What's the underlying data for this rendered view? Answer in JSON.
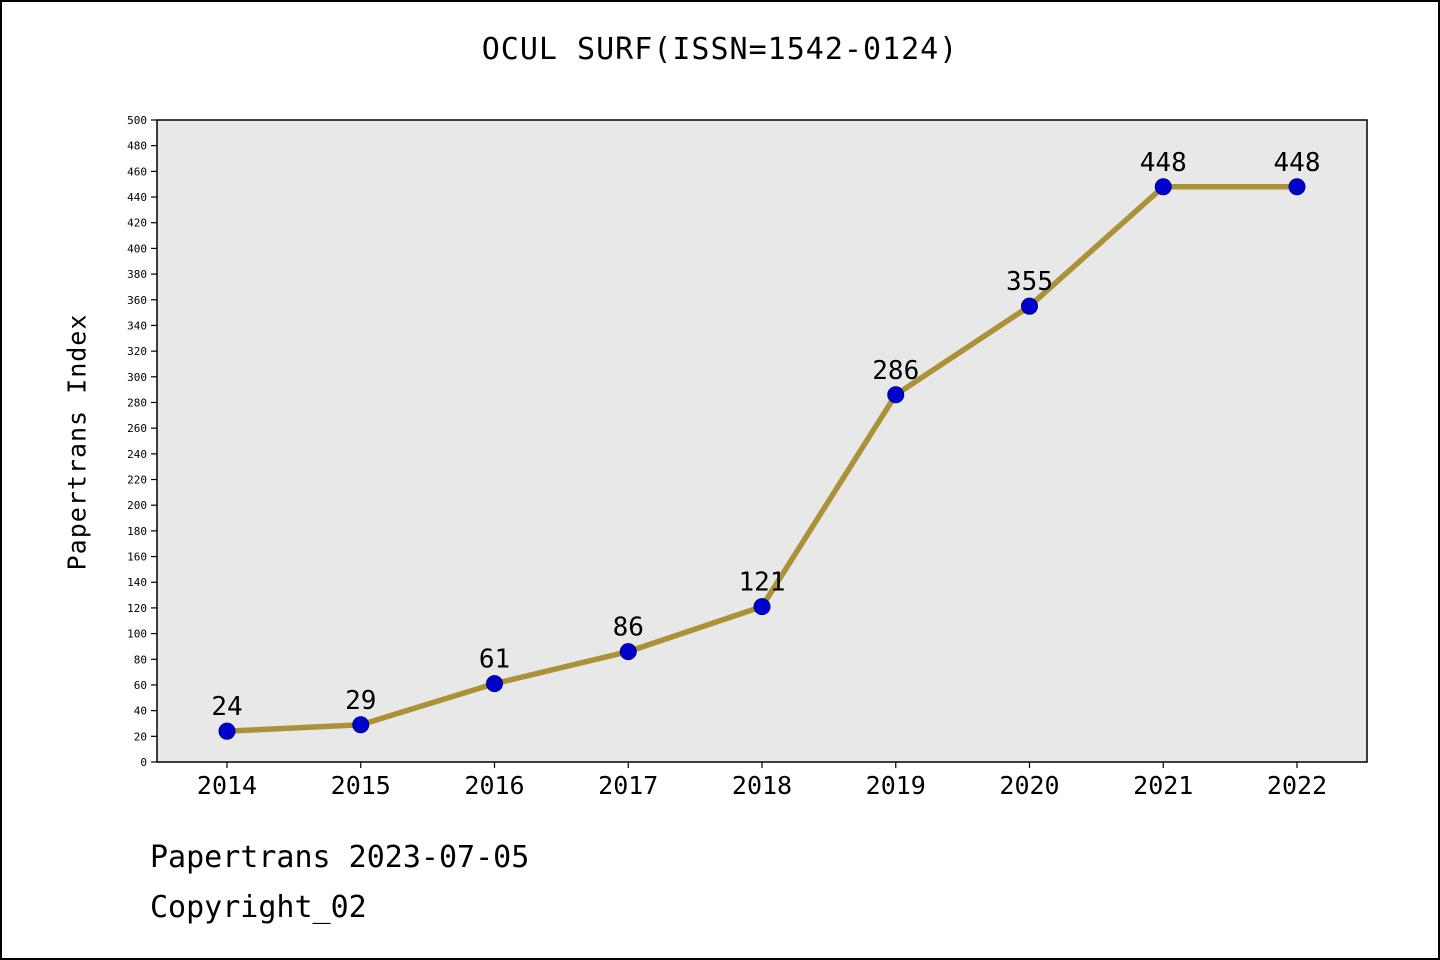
{
  "title": "OCUL SURF(ISSN=1542-0124)",
  "footer": {
    "line1": "Papertrans 2023-07-05",
    "line2": "Copyright_02"
  },
  "chart_data": {
    "type": "line",
    "title": "OCUL SURF(ISSN=1542-0124)",
    "categories": [
      "2014",
      "2015",
      "2016",
      "2017",
      "2018",
      "2019",
      "2020",
      "2021",
      "2022"
    ],
    "values": [
      24,
      29,
      61,
      86,
      121,
      286,
      355,
      448,
      448
    ],
    "xlabel": "",
    "ylabel": "Papertrans Index",
    "ylim": [
      0,
      500
    ],
    "ytick_step": 20,
    "grid": false,
    "legend": "none",
    "line_color": "#ab9238",
    "marker_color": "#0000cc",
    "marker_edge_color": "#00008b",
    "plot_bg": "#e8e8e8",
    "axis_color": "#000000"
  }
}
